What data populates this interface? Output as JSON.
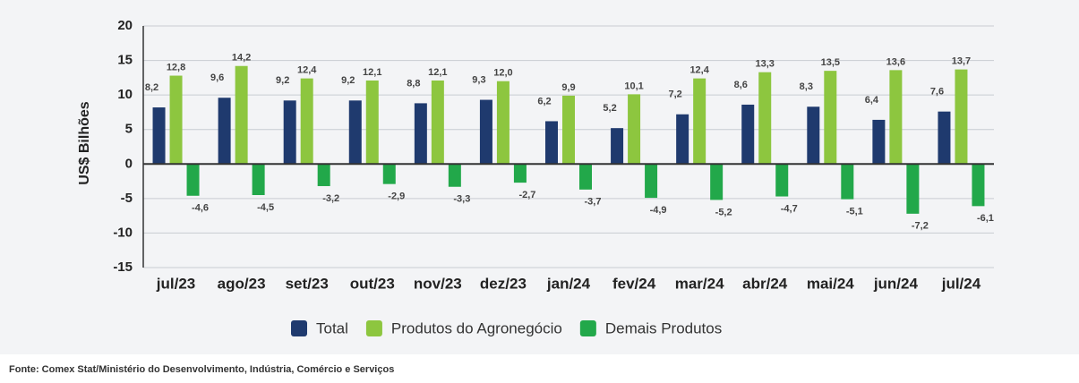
{
  "chart_data": {
    "type": "bar",
    "ylabel": "US$ Bilhões",
    "categories": [
      "jul/23",
      "ago/23",
      "set/23",
      "out/23",
      "nov/23",
      "dez/23",
      "jan/24",
      "fev/24",
      "mar/24",
      "abr/24",
      "mai/24",
      "jun/24",
      "jul/24"
    ],
    "series": [
      {
        "name": "Total",
        "color": "#1f3a6e",
        "values": [
          8.2,
          9.6,
          9.2,
          9.2,
          8.8,
          9.3,
          6.2,
          5.2,
          7.2,
          8.6,
          8.3,
          6.4,
          7.6
        ],
        "value_labels": [
          "8,2",
          "9,6",
          "9,2",
          "9,2",
          "8,8",
          "9,3",
          "6,2",
          "5,2",
          "7,2",
          "8,6",
          "8,3",
          "6,4",
          "7,6"
        ]
      },
      {
        "name": "Produtos do Agronegócio",
        "color": "#8dc63f",
        "values": [
          12.8,
          14.2,
          12.4,
          12.1,
          12.1,
          12.0,
          9.9,
          10.1,
          12.4,
          13.3,
          13.5,
          13.6,
          13.7
        ],
        "value_labels": [
          "12,8",
          "14,2",
          "12,4",
          "12,1",
          "12,1",
          "12,0",
          "9,9",
          "10,1",
          "12,4",
          "13,3",
          "13,5",
          "13,6",
          "13,7"
        ]
      },
      {
        "name": "Demais Produtos",
        "color": "#22a84a",
        "values": [
          -4.6,
          -4.5,
          -3.2,
          -2.9,
          -3.3,
          -2.7,
          -3.7,
          -4.9,
          -5.2,
          -4.7,
          -5.1,
          -7.2,
          -6.1
        ],
        "value_labels": [
          "-4,6",
          "-4,5",
          "-3,2",
          "-2,9",
          "-3,3",
          "-2,7",
          "-3,7",
          "-4,9",
          "-5,2",
          "-4,7",
          "-5,1",
          "-7,2",
          "-6,1"
        ]
      }
    ],
    "ylim": [
      -15,
      20
    ],
    "yticks": [
      -15,
      -10,
      -5,
      0,
      5,
      10,
      15,
      20
    ],
    "grid": true,
    "legend": "bottom"
  },
  "source": "Fonte:  Comex Stat/Ministério do Desenvolvimento, Indústria, Comércio e Serviços"
}
